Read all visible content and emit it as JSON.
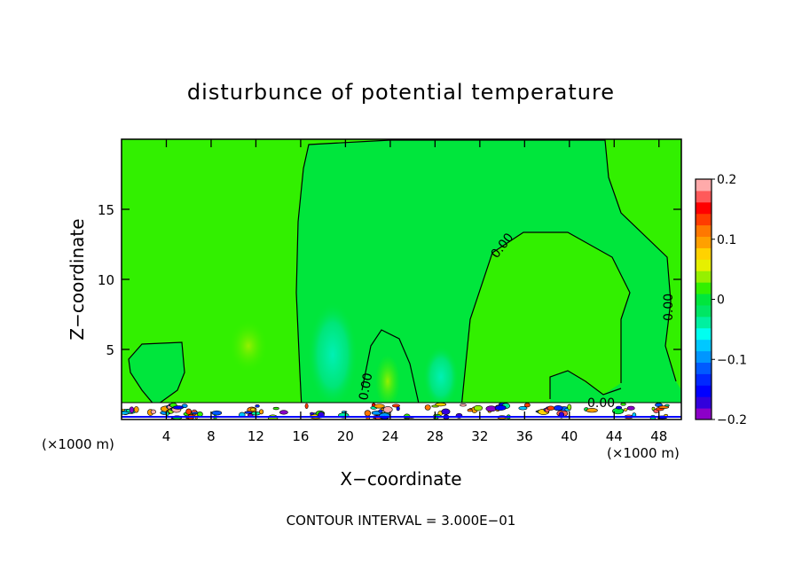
{
  "chart_data": {
    "type": "contour",
    "title": "disturbunce of potential temperature",
    "xlabel": "X−coordinate",
    "ylabel": "Z−coordinate",
    "x_unit_left": "(×1000 m)",
    "x_unit_right": "(×1000 m)",
    "xlim": [
      0,
      50
    ],
    "ylim": [
      0,
      20
    ],
    "x_ticks": [
      4,
      8,
      12,
      16,
      20,
      24,
      28,
      32,
      36,
      40,
      44,
      48
    ],
    "y_ticks": [
      5,
      10,
      15
    ],
    "contour_interval_text": "CONTOUR INTERVAL = 3.000E−01",
    "contour_labels": [
      "0.00",
      "0.00",
      "0.00",
      "0.00"
    ],
    "colorbar": {
      "min": -0.2,
      "max": 0.2,
      "tick_values": [
        0.2,
        0.1,
        0,
        -0.1,
        -0.2
      ],
      "tick_labels": [
        "0.2",
        "0.1",
        "0",
        "−0.1",
        "−0.2"
      ],
      "colors": [
        "#8c00c8",
        "#3200dc",
        "#0000ff",
        "#0028ff",
        "#005aff",
        "#0096ff",
        "#00c8ff",
        "#00fff0",
        "#00f0a0",
        "#00e664",
        "#00e63c",
        "#32f000",
        "#96f000",
        "#e6f000",
        "#ffd200",
        "#ffa000",
        "#ff7800",
        "#ff3c00",
        "#ff0000",
        "#ff5a5a",
        "#ffaaaa"
      ]
    }
  }
}
